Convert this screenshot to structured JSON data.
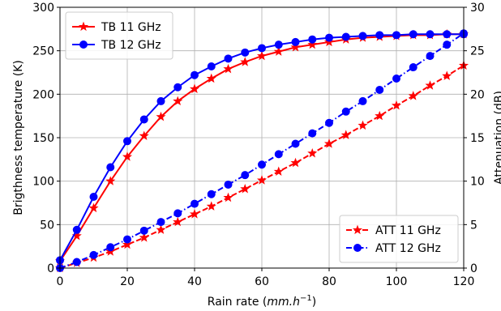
{
  "chart_data": {
    "type": "line",
    "x": [
      0,
      5,
      10,
      15,
      20,
      25,
      30,
      35,
      40,
      45,
      50,
      55,
      60,
      65,
      70,
      75,
      80,
      85,
      90,
      95,
      100,
      105,
      110,
      115,
      120
    ],
    "xlabel": "Rain rate (mm.h⁻¹)",
    "xlabel_main": "Rain rate (",
    "xlabel_unit": "mm.h",
    "xlabel_exp": "−1",
    "xlabel_close": ")",
    "ylabel": "Brigthness temperature (K)",
    "y2label": "Attenuation (dB)",
    "xlim": [
      0,
      120
    ],
    "ylim": [
      0,
      300
    ],
    "y2lim": [
      0,
      30
    ],
    "xticks": [
      0,
      20,
      40,
      60,
      80,
      100,
      120
    ],
    "yticks": [
      0,
      50,
      100,
      150,
      200,
      250,
      300
    ],
    "y2ticks": [
      0,
      5,
      10,
      15,
      20,
      25,
      30
    ],
    "grid": true,
    "series": [
      {
        "name": "TB 11 GHz",
        "axis": "left",
        "color": "#ff0000",
        "marker": "star",
        "dash": "solid",
        "values": [
          8,
          37,
          69,
          100,
          128,
          152,
          174,
          192,
          206,
          218,
          229,
          237,
          244,
          249,
          254,
          257,
          260,
          263,
          265,
          266,
          267,
          268,
          268,
          269,
          269
        ]
      },
      {
        "name": "TB 12 GHz",
        "axis": "left",
        "color": "#0000ff",
        "marker": "circle",
        "dash": "solid",
        "values": [
          9,
          44,
          82,
          116,
          146,
          171,
          192,
          208,
          222,
          232,
          241,
          248,
          253,
          257,
          260,
          263,
          265,
          266,
          267,
          268,
          268,
          269,
          269,
          269,
          269
        ]
      },
      {
        "name": "ATT 11 GHz",
        "axis": "right",
        "color": "#ff0000",
        "marker": "star",
        "dash": "dashed",
        "values": [
          0,
          0.6,
          1.2,
          1.9,
          2.7,
          3.5,
          4.4,
          5.3,
          6.2,
          7.1,
          8.1,
          9.1,
          10.1,
          11.1,
          12.1,
          13.2,
          14.3,
          15.3,
          16.4,
          17.5,
          18.7,
          19.8,
          21.0,
          22.1,
          23.3
        ]
      },
      {
        "name": "ATT 12 GHz",
        "axis": "right",
        "color": "#0000ff",
        "marker": "circle",
        "dash": "dashdot",
        "values": [
          0,
          0.7,
          1.5,
          2.4,
          3.3,
          4.3,
          5.3,
          6.3,
          7.4,
          8.5,
          9.6,
          10.7,
          11.9,
          13.1,
          14.3,
          15.5,
          16.7,
          18.0,
          19.2,
          20.5,
          21.8,
          23.1,
          24.4,
          25.7,
          27.0
        ]
      }
    ],
    "legends": [
      {
        "placement": "upper-left",
        "series": [
          0,
          1
        ]
      },
      {
        "placement": "lower-right",
        "series": [
          2,
          3
        ]
      }
    ]
  }
}
